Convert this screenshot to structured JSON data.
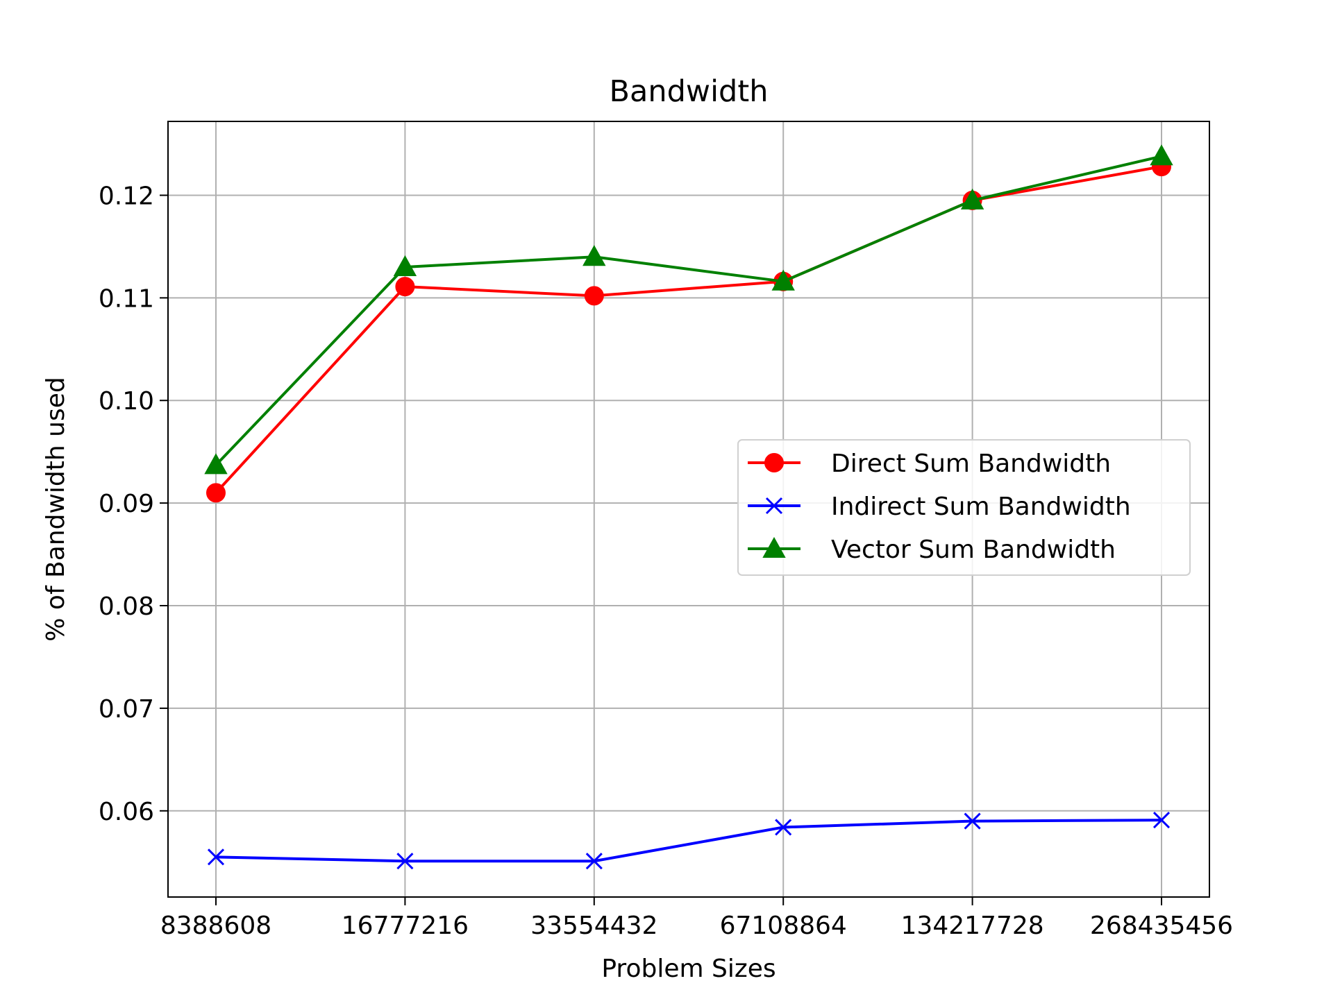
{
  "chart_data": {
    "type": "line",
    "title": "Bandwidth",
    "xlabel": "Problem Sizes",
    "ylabel": "% of Bandwidth used",
    "categories": [
      "8388608",
      "16777216",
      "33554432",
      "67108864",
      "134217728",
      "268435456"
    ],
    "y_ticks": [
      0.06,
      0.07,
      0.08,
      0.09,
      0.1,
      0.11,
      0.12
    ],
    "y_tick_labels": [
      "0.06",
      "0.07",
      "0.08",
      "0.09",
      "0.10",
      "0.11",
      "0.12"
    ],
    "ylim": [
      0.0516,
      0.1272
    ],
    "grid": true,
    "legend_position": "center-right",
    "series": [
      {
        "name": "Direct Sum Bandwidth",
        "color": "#ff0000",
        "marker": "circle",
        "values": [
          0.091,
          0.1111,
          0.1102,
          0.1116,
          0.1195,
          0.1228
        ]
      },
      {
        "name": "Indirect Sum Bandwidth",
        "color": "#0000ff",
        "marker": "x",
        "values": [
          0.0555,
          0.0551,
          0.0551,
          0.0584,
          0.059,
          0.0591
        ]
      },
      {
        "name": "Vector Sum Bandwidth",
        "color": "#008000",
        "marker": "triangle",
        "values": [
          0.0937,
          0.113,
          0.114,
          0.1116,
          0.1195,
          0.1238
        ]
      }
    ]
  }
}
